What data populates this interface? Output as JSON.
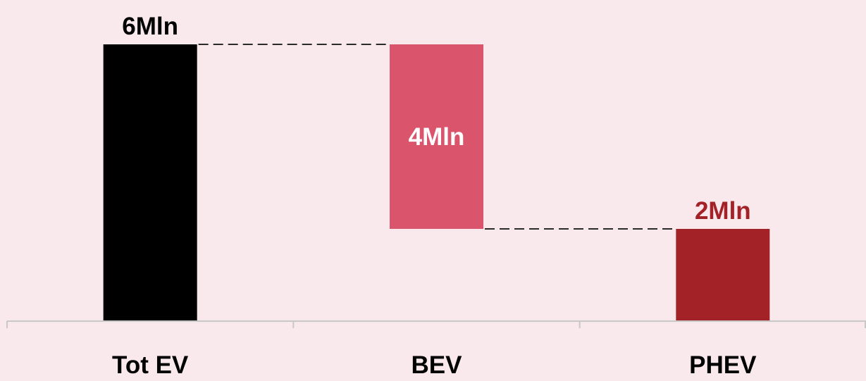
{
  "chart_data": {
    "type": "bar",
    "subtype": "waterfall",
    "categories": [
      "Tot EV",
      "BEV",
      "PHEV"
    ],
    "values": [
      6,
      4,
      2
    ],
    "value_labels": [
      "6Mln",
      "4Mln",
      "2Mln"
    ],
    "bar_starts": [
      0,
      2,
      0
    ],
    "bar_ends": [
      6,
      6,
      2
    ],
    "connectors": [
      {
        "from": "Tot EV",
        "to": "BEV",
        "level": 6
      },
      {
        "from": "BEV",
        "to": "PHEV",
        "level": 2
      }
    ],
    "colors": [
      "#000000",
      "#da556c",
      "#a32227"
    ],
    "label_colors": [
      "#000000",
      "#ffffff",
      "#a32227"
    ],
    "label_positions": [
      "above",
      "inside",
      "above"
    ],
    "ylim": [
      0,
      6
    ],
    "grid": false,
    "legend": "none",
    "background": "#f9e8ec",
    "axis_color": "#c8c8c8",
    "connector_color": "#2a2a2a",
    "title": "",
    "xlabel": "",
    "ylabel": ""
  }
}
